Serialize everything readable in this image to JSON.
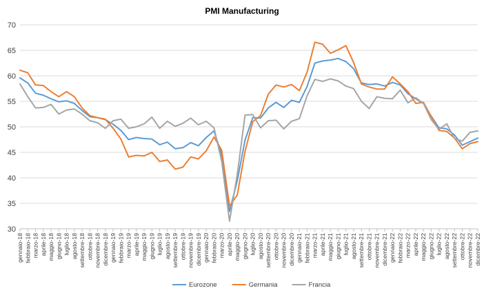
{
  "chart_data": {
    "type": "line",
    "title": "PMI Manufacturing",
    "xlabel": "",
    "ylabel": "",
    "ylim": [
      30,
      70
    ],
    "yticks": [
      30,
      35,
      40,
      45,
      50,
      55,
      60,
      65,
      70
    ],
    "grid": true,
    "legend_position": "bottom",
    "x": [
      "gennaio-18",
      "febbraio-18",
      "marzo-18",
      "aprile-18",
      "maggio-18",
      "giugno-18",
      "luglio-18",
      "agosto-18",
      "settembre-18",
      "ottobre-18",
      "novembre-18",
      "dicembre-18",
      "gennaio-19",
      "febbraio-19",
      "marzo-19",
      "aprile-19",
      "maggio-19",
      "giugno-19",
      "luglio-19",
      "agosto-19",
      "settembre-19",
      "ottobre-19",
      "novembre-19",
      "dicembre-19",
      "gennaio-20",
      "febbraio-20",
      "marzo-20",
      "aprile-20",
      "maggio-20",
      "giugno-20",
      "luglio-20",
      "agosto-20",
      "settembre-20",
      "ottobre-20",
      "novembre-20",
      "dicembre-20",
      "gennaio-21",
      "febbraio-21",
      "marzo-21",
      "aprile-21",
      "maggio-21",
      "giugno-21",
      "luglio-21",
      "agosto-21",
      "settembre-21",
      "ottobre-21",
      "novembre-21",
      "dicembre-21",
      "gennaio-22",
      "febbraio-22",
      "marzo-22",
      "aprile-22",
      "maggio-22",
      "giugno-22",
      "luglio-22",
      "agosto-22",
      "settembre-22",
      "ottobre-22",
      "novembre-22",
      "dicembre-22"
    ],
    "series": [
      {
        "name": "Eurozone",
        "color": "#5b9bd5",
        "values": [
          59.6,
          58.6,
          56.6,
          56.2,
          55.5,
          54.9,
          55.1,
          54.6,
          53.2,
          52.0,
          51.8,
          51.4,
          50.5,
          49.3,
          47.5,
          47.9,
          47.7,
          47.6,
          46.5,
          47.0,
          45.7,
          45.9,
          46.9,
          46.3,
          47.9,
          49.2,
          44.5,
          33.4,
          39.4,
          47.4,
          51.8,
          51.7,
          53.7,
          54.8,
          53.8,
          55.2,
          54.8,
          57.9,
          62.5,
          62.9,
          63.1,
          63.4,
          62.8,
          61.4,
          58.6,
          58.3,
          58.4,
          58.0,
          58.7,
          58.2,
          56.5,
          55.5,
          54.6,
          52.1,
          49.8,
          49.6,
          48.4,
          46.4,
          47.1,
          47.8
        ]
      },
      {
        "name": "Germania",
        "color": "#ed7d31",
        "values": [
          61.1,
          60.6,
          58.2,
          58.1,
          56.9,
          55.9,
          56.9,
          55.9,
          53.7,
          52.2,
          51.8,
          51.5,
          49.7,
          47.6,
          44.1,
          44.4,
          44.3,
          45.0,
          43.2,
          43.5,
          41.7,
          42.1,
          44.1,
          43.7,
          45.3,
          48.0,
          45.4,
          34.5,
          36.6,
          45.2,
          51.0,
          52.2,
          56.4,
          58.2,
          57.8,
          58.3,
          57.1,
          60.7,
          66.6,
          66.2,
          64.4,
          65.1,
          65.9,
          62.6,
          58.4,
          57.8,
          57.4,
          57.4,
          59.8,
          58.4,
          56.9,
          54.6,
          54.8,
          52.0,
          49.3,
          49.1,
          47.8,
          45.7,
          46.7,
          47.1
        ]
      },
      {
        "name": "Francia",
        "color": "#a5a5a5",
        "values": [
          58.4,
          55.9,
          53.7,
          53.8,
          54.4,
          52.5,
          53.3,
          53.5,
          52.5,
          51.2,
          50.8,
          49.7,
          51.2,
          51.5,
          49.7,
          50.0,
          50.6,
          51.9,
          49.7,
          51.1,
          50.1,
          50.7,
          51.7,
          50.4,
          51.1,
          49.8,
          43.2,
          31.5,
          40.6,
          52.3,
          52.4,
          49.8,
          51.2,
          51.3,
          49.6,
          51.1,
          51.6,
          56.1,
          59.3,
          58.9,
          59.4,
          59.0,
          58.0,
          57.5,
          55.0,
          53.6,
          55.9,
          55.6,
          55.5,
          57.2,
          54.7,
          55.7,
          54.6,
          51.4,
          49.5,
          50.6,
          47.7,
          47.2,
          48.9,
          49.2
        ]
      }
    ]
  }
}
